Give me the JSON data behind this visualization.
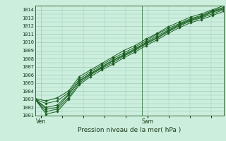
{
  "title": "",
  "xlabel": "Pression niveau de la mer( hPa )",
  "xtick_labels": [
    "Ven",
    "Sam"
  ],
  "ylim": [
    1001,
    1014.5
  ],
  "yticks": [
    1001,
    1002,
    1003,
    1004,
    1005,
    1006,
    1007,
    1008,
    1009,
    1010,
    1011,
    1012,
    1013,
    1014
  ],
  "bg_color": "#cceedd",
  "grid_color": "#99ccbb",
  "line_color": "#1a5e20",
  "vline_x": 0.565,
  "series": [
    [
      1003.0,
      1001.8,
      1002.0,
      1003.5,
      1005.3,
      1006.2,
      1007.0,
      1007.8,
      1008.5,
      1009.2,
      1010.0,
      1010.8,
      1011.5,
      1012.2,
      1012.8,
      1013.2,
      1013.8,
      1014.2
    ],
    [
      1003.0,
      1001.5,
      1001.8,
      1003.2,
      1005.0,
      1006.0,
      1006.8,
      1007.5,
      1008.3,
      1009.0,
      1009.8,
      1010.5,
      1011.3,
      1012.0,
      1012.6,
      1013.0,
      1013.5,
      1014.0
    ],
    [
      1003.0,
      1002.5,
      1002.8,
      1003.8,
      1005.5,
      1006.4,
      1007.2,
      1008.0,
      1008.7,
      1009.4,
      1010.2,
      1011.0,
      1011.7,
      1012.3,
      1012.9,
      1013.3,
      1013.9,
      1014.3
    ],
    [
      1003.1,
      1002.8,
      1003.2,
      1004.0,
      1005.8,
      1006.6,
      1007.4,
      1008.2,
      1009.0,
      1009.6,
      1010.4,
      1011.1,
      1011.9,
      1012.5,
      1013.1,
      1013.5,
      1014.0,
      1014.5
    ],
    [
      1003.0,
      1001.2,
      1001.5,
      1003.0,
      1004.8,
      1005.8,
      1006.6,
      1007.3,
      1008.1,
      1008.8,
      1009.6,
      1010.3,
      1011.1,
      1011.8,
      1012.4,
      1012.8,
      1013.3,
      1013.8
    ],
    [
      1003.0,
      1002.0,
      1002.3,
      1003.6,
      1005.2,
      1006.1,
      1006.9,
      1007.7,
      1008.4,
      1009.1,
      1009.9,
      1010.6,
      1011.4,
      1012.1,
      1012.7,
      1013.1,
      1013.7,
      1014.1
    ]
  ]
}
